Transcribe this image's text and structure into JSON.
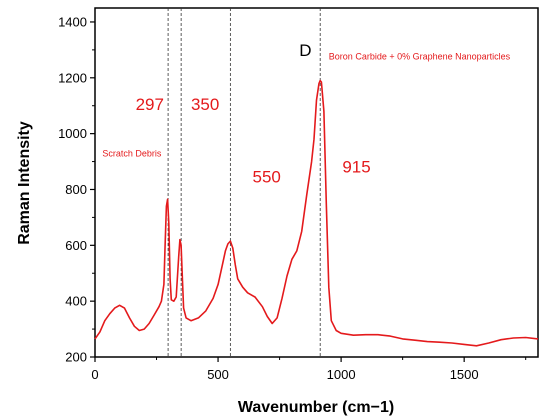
{
  "chart_data": {
    "type": "line",
    "xlabel": "Wavenumber (cm−1)",
    "ylabel": "Raman Intensity",
    "xlim": [
      0,
      1800
    ],
    "ylim": [
      200,
      1450
    ],
    "xticks": [
      0,
      500,
      1000,
      1500
    ],
    "yticks": [
      200,
      400,
      600,
      800,
      1000,
      1200,
      1400
    ],
    "grid": false,
    "series": [
      {
        "name": "Boron Carbide + 0% Graphene Nanoparticles",
        "color": "#e41a1c",
        "x": [
          0,
          20,
          40,
          60,
          80,
          100,
          120,
          140,
          160,
          180,
          200,
          220,
          240,
          260,
          270,
          280,
          285,
          290,
          295,
          300,
          305,
          310,
          320,
          330,
          340,
          345,
          350,
          355,
          360,
          370,
          390,
          420,
          450,
          480,
          500,
          520,
          530,
          540,
          550,
          560,
          570,
          580,
          600,
          620,
          650,
          680,
          700,
          720,
          740,
          760,
          780,
          800,
          820,
          840,
          860,
          880,
          890,
          900,
          910,
          915,
          920,
          930,
          940,
          950,
          960,
          980,
          1000,
          1050,
          1100,
          1150,
          1200,
          1250,
          1300,
          1350,
          1400,
          1450,
          1500,
          1550,
          1600,
          1650,
          1700,
          1750,
          1800
        ],
        "y": [
          265,
          290,
          330,
          355,
          375,
          385,
          375,
          340,
          310,
          295,
          300,
          320,
          350,
          380,
          400,
          460,
          600,
          740,
          765,
          680,
          480,
          405,
          400,
          415,
          560,
          620,
          600,
          480,
          375,
          340,
          330,
          340,
          365,
          410,
          460,
          540,
          580,
          605,
          615,
          590,
          530,
          480,
          450,
          430,
          415,
          380,
          345,
          320,
          340,
          410,
          490,
          550,
          580,
          650,
          780,
          900,
          980,
          1120,
          1180,
          1190,
          1185,
          1080,
          750,
          450,
          330,
          295,
          285,
          278,
          280,
          280,
          275,
          265,
          260,
          255,
          253,
          250,
          245,
          240,
          250,
          262,
          268,
          270,
          265
        ]
      }
    ],
    "reference_lines": [
      297,
      350,
      550,
      915
    ],
    "annotations": [
      {
        "text": "297",
        "x": 165,
        "y": 1085,
        "style": "big"
      },
      {
        "text": "350",
        "x": 390,
        "y": 1085,
        "style": "big"
      },
      {
        "text": "550",
        "x": 640,
        "y": 825,
        "style": "big"
      },
      {
        "text": "915",
        "x": 1005,
        "y": 860,
        "style": "big"
      },
      {
        "text": "Scratch Debris",
        "x": 30,
        "y": 918,
        "style": "small"
      },
      {
        "text": "D",
        "x": 830,
        "y": 1278,
        "style": "black"
      },
      {
        "text": "Boron Carbide + 0% Graphene Nanoparticles",
        "x": 950,
        "y": 1265,
        "style": "small"
      }
    ]
  }
}
